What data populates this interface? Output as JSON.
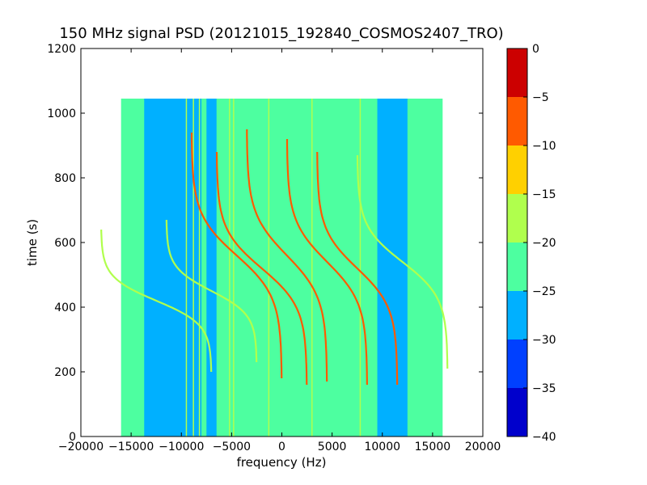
{
  "chart_data": {
    "type": "heatmap",
    "title": "150 MHz signal PSD (20121015_192840_COSMOS2407_TRO)",
    "xlabel": "frequency (Hz)",
    "ylabel": "time (s)",
    "xlim": [
      -20000,
      20000
    ],
    "ylim": [
      0,
      1200
    ],
    "xticks": [
      -20000,
      -15000,
      -10000,
      -5000,
      0,
      5000,
      10000,
      15000,
      20000
    ],
    "xtick_labels": [
      "−20000",
      "−15000",
      "−10000",
      "−5000",
      "0",
      "5000",
      "10000",
      "15000",
      "20000"
    ],
    "yticks": [
      0,
      200,
      400,
      600,
      800,
      1000,
      1200
    ],
    "ytick_labels": [
      "0",
      "200",
      "400",
      "600",
      "800",
      "1000",
      "1200"
    ],
    "grid": false,
    "data_extent": {
      "x": [
        -16000,
        16000
      ],
      "y": [
        0,
        1045
      ]
    },
    "colorbar": {
      "range": [
        -40,
        0
      ],
      "ticks": [
        0,
        -5,
        -10,
        -15,
        -20,
        -25,
        -30,
        -35,
        -40
      ],
      "tick_labels": [
        "0",
        "−5",
        "−10",
        "−15",
        "−20",
        "−25",
        "−30",
        "−35",
        "−40"
      ],
      "levels": [
        {
          "from": -40,
          "to": -35,
          "color": "#0000cc"
        },
        {
          "from": -35,
          "to": -30,
          "color": "#0040ff"
        },
        {
          "from": -30,
          "to": -25,
          "color": "#00b0ff"
        },
        {
          "from": -25,
          "to": -20,
          "color": "#4dffa0"
        },
        {
          "from": -20,
          "to": -15,
          "color": "#b0ff4d"
        },
        {
          "from": -15,
          "to": -10,
          "color": "#ffd000"
        },
        {
          "from": -10,
          "to": -5,
          "color": "#ff5a00"
        },
        {
          "from": -5,
          "to": 0,
          "color": "#cc0000"
        }
      ]
    },
    "background_level_db": -22,
    "low_noise_bands": [
      {
        "x": [
          -13700,
          -8000
        ],
        "level_db": -28
      },
      {
        "x": [
          -7500,
          -6500
        ],
        "level_db": -27
      },
      {
        "x": [
          9500,
          12500
        ],
        "level_db": -27
      }
    ],
    "doppler_traces": [
      {
        "center_hz": -12500,
        "center_time_s": 420,
        "half_span_hz": 5500,
        "time_span_s": 220,
        "level_db": -17
      },
      {
        "center_hz": -7000,
        "center_time_s": 450,
        "half_span_hz": 4500,
        "time_span_s": 220,
        "level_db": -19
      },
      {
        "center_hz": -4500,
        "center_time_s": 560,
        "half_span_hz": 4500,
        "time_span_s": 380,
        "level_db": -6
      },
      {
        "center_hz": -2000,
        "center_time_s": 520,
        "half_span_hz": 4500,
        "time_span_s": 360,
        "level_db": -8
      },
      {
        "center_hz": 500,
        "center_time_s": 560,
        "half_span_hz": 4000,
        "time_span_s": 390,
        "level_db": -7
      },
      {
        "center_hz": 4500,
        "center_time_s": 540,
        "half_span_hz": 4000,
        "time_span_s": 380,
        "level_db": -7
      },
      {
        "center_hz": 7500,
        "center_time_s": 520,
        "half_span_hz": 4000,
        "time_span_s": 360,
        "level_db": -8
      },
      {
        "center_hz": 12000,
        "center_time_s": 540,
        "half_span_hz": 4500,
        "time_span_s": 330,
        "level_db": -17
      }
    ],
    "vertical_lines_hz": [
      -9500,
      -8800,
      -8200,
      -5200,
      -4800,
      -1300,
      3000,
      7800
    ]
  }
}
